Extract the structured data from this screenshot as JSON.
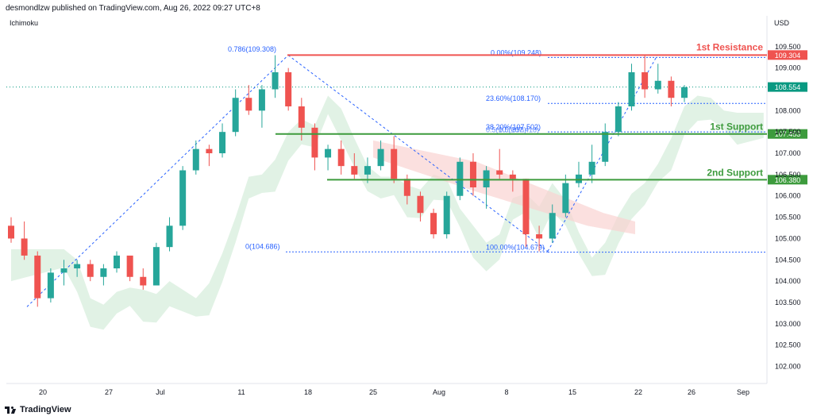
{
  "header": {
    "text": "desmondlzw published on TradingView.com, Aug 26, 2022 09:27 UTC+8"
  },
  "indicator": {
    "name": "Ichimoku"
  },
  "currency": "USD",
  "footer": {
    "brand": "TradingView",
    "logo_icon": "tradingview-logo-icon"
  },
  "colors": {
    "up": "#26a69a",
    "down": "#ef5350",
    "resistance": "#ef5350",
    "support": "#3d9b3d",
    "fib": "#2962ff",
    "price_tag": "#089981",
    "cloud_bull": "#cde9d3",
    "cloud_bear": "#f9d3d1"
  },
  "chart_data": {
    "type": "candlestick",
    "symbol": "USD",
    "y_ticks": [
      109.5,
      109,
      108.5,
      108,
      107.5,
      107,
      106.5,
      106,
      105.5,
      105,
      104.5,
      104,
      103.5,
      103,
      102.5,
      102
    ],
    "ylim": [
      101.6,
      109.85
    ],
    "x_ticks": [
      "20",
      "27",
      "Jul",
      "11",
      "18",
      "25",
      "Aug",
      "8",
      "15",
      "22",
      "26",
      "Sep"
    ],
    "current_price": 108.554,
    "levels": [
      {
        "name": "1st Resistance",
        "value": 109.304,
        "label": "109.304",
        "color": "#ef5350"
      },
      {
        "name": "1st Support",
        "value": 107.453,
        "label": "107.453",
        "color": "#3d9b3d"
      },
      {
        "name": "2nd Support",
        "value": 106.38,
        "label": "106.380",
        "color": "#3d9b3d"
      }
    ],
    "fib_left": [
      {
        "label": "0.786(109.308)",
        "value": 109.308
      },
      {
        "label": "0(104.686)",
        "value": 104.686
      }
    ],
    "fib_right": [
      {
        "label": "0.00%(109.248)",
        "value": 109.248
      },
      {
        "label": "23.60%(108.170)",
        "value": 108.17
      },
      {
        "label": "38.20%(107.502)",
        "value": 107.502
      },
      {
        "label": "100.00%(104.679)",
        "value": 104.679
      }
    ],
    "overlap_labels": [
      "0.5(10...998)",
      "0.5(107.418)"
    ],
    "candles": [
      {
        "x": "Jun 16",
        "values": [
          105.3,
          105.5,
          104.9,
          105.0
        ]
      },
      {
        "x": "Jun 17",
        "values": [
          105.0,
          105.4,
          104.5,
          104.6
        ]
      },
      {
        "x": "Jun 20",
        "values": [
          104.6,
          104.7,
          103.4,
          103.6
        ]
      },
      {
        "x": "Jun 21",
        "values": [
          103.6,
          104.3,
          103.5,
          104.2
        ]
      },
      {
        "x": "Jun 22",
        "values": [
          104.2,
          104.5,
          103.9,
          104.3
        ]
      },
      {
        "x": "Jun 23",
        "values": [
          104.3,
          104.5,
          104.1,
          104.4
        ]
      },
      {
        "x": "Jun 24",
        "values": [
          104.4,
          104.5,
          104.0,
          104.1
        ]
      },
      {
        "x": "Jun 27",
        "values": [
          104.1,
          104.4,
          103.9,
          104.3
        ]
      },
      {
        "x": "Jun 28",
        "values": [
          104.3,
          104.7,
          104.2,
          104.6
        ]
      },
      {
        "x": "Jun 29",
        "values": [
          104.6,
          104.5,
          104.0,
          104.1
        ]
      },
      {
        "x": "Jun 30",
        "values": [
          104.1,
          104.3,
          103.8,
          103.9
        ]
      },
      {
        "x": "Jul 1",
        "values": [
          103.9,
          104.9,
          103.9,
          104.8
        ]
      },
      {
        "x": "Jul 4",
        "values": [
          104.8,
          105.5,
          104.7,
          105.3
        ]
      },
      {
        "x": "Jul 5",
        "values": [
          105.3,
          106.7,
          105.2,
          106.6
        ]
      },
      {
        "x": "Jul 6",
        "values": [
          106.6,
          107.3,
          106.5,
          107.1
        ]
      },
      {
        "x": "Jul 7",
        "values": [
          107.1,
          107.2,
          106.7,
          107.0
        ]
      },
      {
        "x": "Jul 8",
        "values": [
          107.0,
          107.7,
          106.9,
          107.5
        ]
      },
      {
        "x": "Jul 11",
        "values": [
          107.5,
          108.5,
          107.4,
          108.3
        ]
      },
      {
        "x": "Jul 12",
        "values": [
          108.3,
          108.6,
          107.9,
          108.0
        ]
      },
      {
        "x": "Jul 13",
        "values": [
          108.0,
          108.6,
          107.6,
          108.5
        ]
      },
      {
        "x": "Jul 14",
        "values": [
          108.5,
          109.3,
          108.3,
          108.9
        ]
      },
      {
        "x": "Jul 15",
        "values": [
          108.9,
          109.0,
          108.0,
          108.1
        ]
      },
      {
        "x": "Jul 18",
        "values": [
          108.1,
          108.3,
          107.3,
          107.6
        ]
      },
      {
        "x": "Jul 19",
        "values": [
          107.6,
          107.7,
          106.6,
          106.9
        ]
      },
      {
        "x": "Jul 20",
        "values": [
          106.9,
          107.2,
          106.6,
          107.1
        ]
      },
      {
        "x": "Jul 21",
        "values": [
          107.1,
          107.3,
          106.5,
          106.7
        ]
      },
      {
        "x": "Jul 22",
        "values": [
          106.7,
          107.0,
          106.4,
          106.5
        ]
      },
      {
        "x": "Jul 25",
        "values": [
          106.5,
          106.9,
          106.3,
          106.7
        ]
      },
      {
        "x": "Jul 26",
        "values": [
          106.7,
          107.3,
          106.6,
          107.1
        ]
      },
      {
        "x": "Jul 27",
        "values": [
          107.1,
          107.4,
          106.3,
          106.4
        ]
      },
      {
        "x": "Jul 28",
        "values": [
          106.4,
          106.5,
          105.8,
          106.0
        ]
      },
      {
        "x": "Jul 29",
        "values": [
          106.0,
          106.1,
          105.4,
          105.6
        ]
      },
      {
        "x": "Aug 1",
        "values": [
          105.6,
          105.7,
          105.0,
          105.1
        ]
      },
      {
        "x": "Aug 2",
        "values": [
          105.1,
          106.1,
          105.0,
          106.0
        ]
      },
      {
        "x": "Aug 3",
        "values": [
          106.0,
          106.9,
          105.9,
          106.8
        ]
      },
      {
        "x": "Aug 4",
        "values": [
          106.8,
          107.0,
          106.0,
          106.2
        ]
      },
      {
        "x": "Aug 5",
        "values": [
          106.2,
          106.7,
          105.7,
          106.6
        ]
      },
      {
        "x": "Aug 8",
        "values": [
          106.6,
          107.1,
          106.4,
          106.5
        ]
      },
      {
        "x": "Aug 9",
        "values": [
          106.5,
          106.6,
          106.1,
          106.4
        ]
      },
      {
        "x": "Aug 10",
        "values": [
          106.4,
          106.4,
          104.8,
          105.1
        ]
      },
      {
        "x": "Aug 11",
        "values": [
          105.1,
          105.3,
          104.7,
          105.0
        ]
      },
      {
        "x": "Aug 12",
        "values": [
          105.0,
          105.8,
          104.9,
          105.6
        ]
      },
      {
        "x": "Aug 15",
        "values": [
          105.6,
          106.5,
          105.5,
          106.3
        ]
      },
      {
        "x": "Aug 16",
        "values": [
          106.3,
          106.8,
          106.2,
          106.5
        ]
      },
      {
        "x": "Aug 17",
        "values": [
          106.5,
          107.2,
          106.3,
          106.8
        ]
      },
      {
        "x": "Aug 18",
        "values": [
          106.8,
          107.7,
          106.7,
          107.5
        ]
      },
      {
        "x": "Aug 19",
        "values": [
          107.5,
          108.2,
          107.4,
          108.1
        ]
      },
      {
        "x": "Aug 22",
        "values": [
          108.1,
          109.1,
          108.0,
          108.9
        ]
      },
      {
        "x": "Aug 23",
        "values": [
          108.9,
          109.3,
          108.3,
          108.5
        ]
      },
      {
        "x": "Aug 24",
        "values": [
          108.5,
          109.1,
          108.4,
          108.7
        ]
      },
      {
        "x": "Aug 25",
        "values": [
          108.7,
          108.8,
          108.1,
          108.3
        ]
      },
      {
        "x": "Aug 26",
        "values": [
          108.3,
          108.6,
          108.2,
          108.55
        ]
      }
    ]
  }
}
